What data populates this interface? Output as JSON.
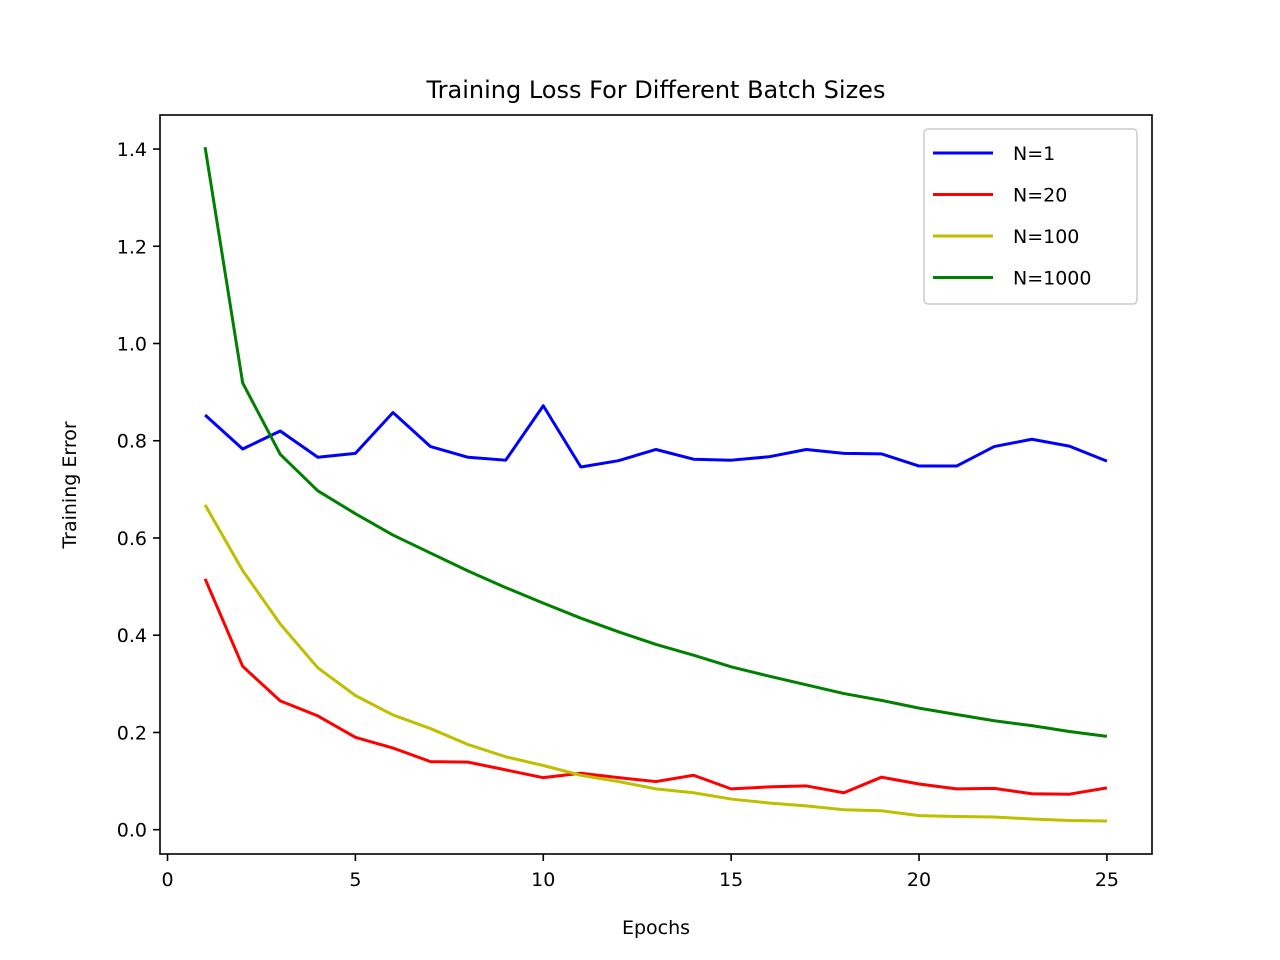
{
  "chart_data": {
    "type": "line",
    "title": "Training Loss For Different Batch Sizes",
    "xlabel": "Epochs",
    "ylabel": "Training Error",
    "xlim": [
      -0.2,
      26.2
    ],
    "ylim": [
      -0.05,
      1.47
    ],
    "xticks": [
      0,
      5,
      10,
      15,
      20,
      25
    ],
    "xtick_labels": [
      "0",
      "5",
      "10",
      "15",
      "20",
      "25"
    ],
    "yticks": [
      0.0,
      0.2,
      0.4,
      0.6,
      0.8,
      1.0,
      1.2,
      1.4
    ],
    "ytick_labels": [
      "0.0",
      "0.2",
      "0.4",
      "0.6",
      "0.8",
      "1.0",
      "1.2",
      "1.4"
    ],
    "grid": false,
    "legend_position": "top-right",
    "x": [
      1,
      2,
      3,
      4,
      5,
      6,
      7,
      8,
      9,
      10,
      11,
      12,
      13,
      14,
      15,
      16,
      17,
      18,
      19,
      20,
      21,
      22,
      23,
      24,
      25
    ],
    "series": [
      {
        "name": "N=1",
        "color": "#0000ff",
        "values": [
          0.853,
          0.783,
          0.82,
          0.766,
          0.774,
          0.858,
          0.788,
          0.766,
          0.76,
          0.872,
          0.746,
          0.759,
          0.782,
          0.762,
          0.76,
          0.767,
          0.782,
          0.774,
          0.773,
          0.748,
          0.748,
          0.788,
          0.803,
          0.789,
          0.758
        ]
      },
      {
        "name": "N=20",
        "color": "#ff0000",
        "values": [
          0.516,
          0.336,
          0.265,
          0.234,
          0.19,
          0.168,
          0.14,
          0.139,
          0.123,
          0.107,
          0.116,
          0.107,
          0.099,
          0.112,
          0.084,
          0.088,
          0.09,
          0.076,
          0.108,
          0.094,
          0.084,
          0.085,
          0.074,
          0.073,
          0.086
        ]
      },
      {
        "name": "N=100",
        "color": "#bfbf00",
        "values": [
          0.668,
          0.533,
          0.423,
          0.333,
          0.276,
          0.236,
          0.208,
          0.175,
          0.15,
          0.132,
          0.112,
          0.099,
          0.084,
          0.076,
          0.063,
          0.055,
          0.049,
          0.041,
          0.039,
          0.029,
          0.027,
          0.026,
          0.022,
          0.019,
          0.018
        ]
      },
      {
        "name": "N=1000",
        "color": "#008000",
        "values": [
          1.404,
          0.919,
          0.772,
          0.697,
          0.65,
          0.606,
          0.569,
          0.532,
          0.498,
          0.466,
          0.435,
          0.407,
          0.381,
          0.359,
          0.335,
          0.316,
          0.298,
          0.28,
          0.266,
          0.25,
          0.237,
          0.224,
          0.214,
          0.202,
          0.192
        ]
      }
    ]
  }
}
